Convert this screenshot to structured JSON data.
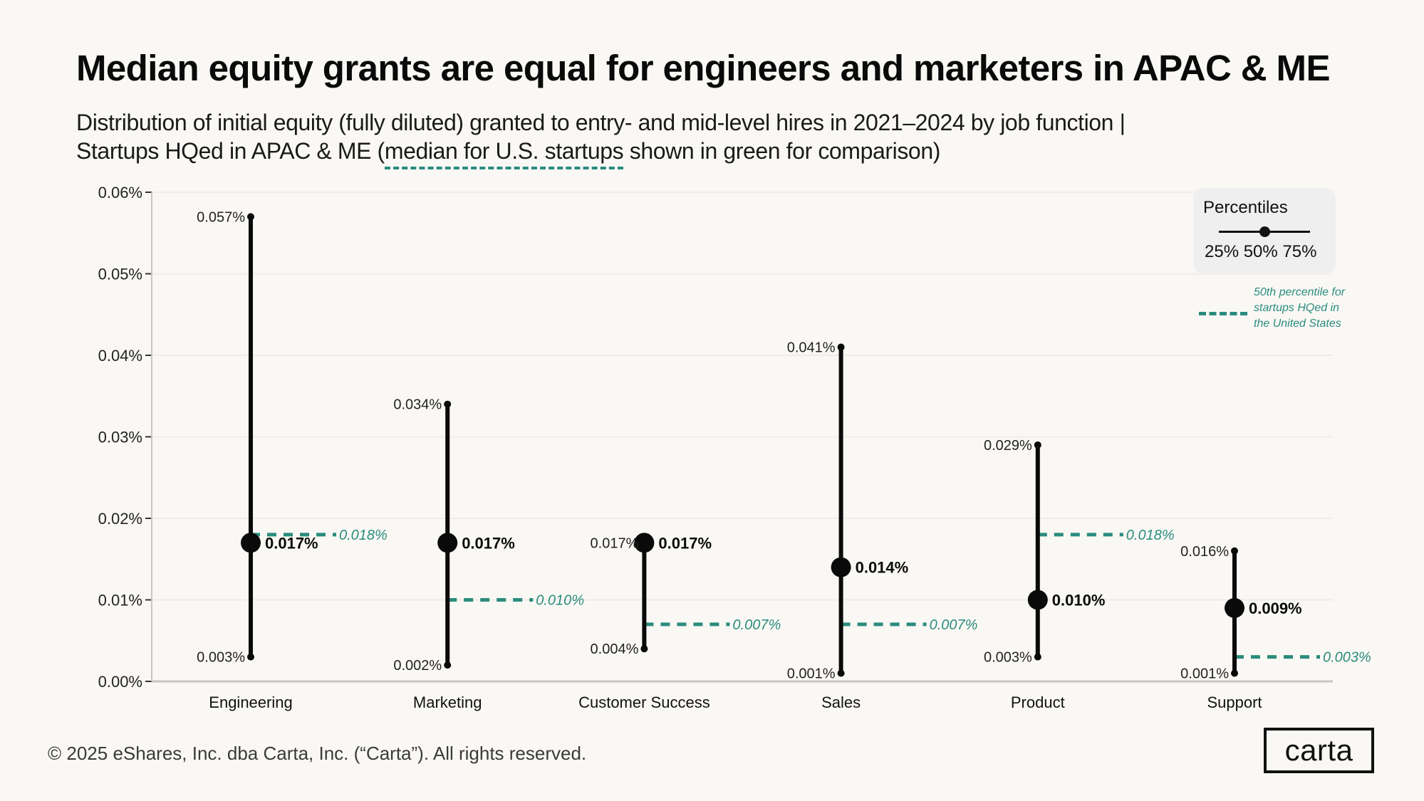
{
  "title": "Median equity grants are equal for engineers and marketers in APAC & ME",
  "subtitle": {
    "line1": "Distribution of initial equity (fully diluted) granted to entry- and mid-level hires in 2021–2024  by job function |",
    "line2_before": "Startups HQed in APAC & ME (",
    "line2_highlight": "median for U.S. startups",
    "line2_after": " shown in green for comparison)"
  },
  "legend": {
    "title": "Percentiles",
    "percentiles": "25% 50% 75%",
    "us_label": "50th percentile for startups HQed in the United States"
  },
  "colors": {
    "background": "#faf8f4",
    "range": "#0a0a0a",
    "us_median": "#2a8c7e",
    "grid": "#efede8",
    "axis": "#c8c6c2"
  },
  "footer": "© 2025 eShares, Inc. dba Carta, Inc. (“Carta”). All rights reserved.",
  "logo": "carta",
  "chart_data": {
    "type": "range-dot",
    "title": "Median equity grants are equal for engineers and marketers in APAC & ME",
    "xlabel": "",
    "ylabel": "",
    "ylim": [
      0,
      0.06
    ],
    "yticks": [
      0,
      0.01,
      0.02,
      0.03,
      0.04,
      0.05,
      0.06
    ],
    "ytick_labels": [
      "0.00%",
      "0.01%",
      "0.02%",
      "0.03%",
      "0.04%",
      "0.05%",
      "0.06%"
    ],
    "grid": true,
    "legend_position": "top-right",
    "categories": [
      "Engineering",
      "Marketing",
      "Customer Success",
      "Sales",
      "Product",
      "Support"
    ],
    "series": [
      {
        "name": "25th percentile",
        "values": [
          0.003,
          0.002,
          0.004,
          0.001,
          0.003,
          0.001
        ],
        "labels": [
          "0.003%",
          "0.002%",
          "0.004%",
          "0.001%",
          "0.003%",
          "0.001%"
        ]
      },
      {
        "name": "50th percentile",
        "values": [
          0.017,
          0.017,
          0.017,
          0.014,
          0.01,
          0.009
        ],
        "labels": [
          "0.017%",
          "0.017%",
          "0.017%",
          "0.014%",
          "0.010%",
          "0.009%"
        ]
      },
      {
        "name": "75th percentile",
        "values": [
          0.057,
          0.034,
          0.017,
          0.041,
          0.029,
          0.016
        ],
        "labels": [
          "0.057%",
          "0.034%",
          "0.017%",
          "0.041%",
          "0.029%",
          "0.016%"
        ]
      },
      {
        "name": "50th percentile for startups HQed in the United States",
        "values": [
          0.018,
          0.01,
          0.007,
          0.007,
          0.018,
          0.003
        ],
        "labels": [
          "0.018%",
          "0.010%",
          "0.007%",
          "0.007%",
          "0.018%",
          "0.003%"
        ]
      }
    ]
  }
}
